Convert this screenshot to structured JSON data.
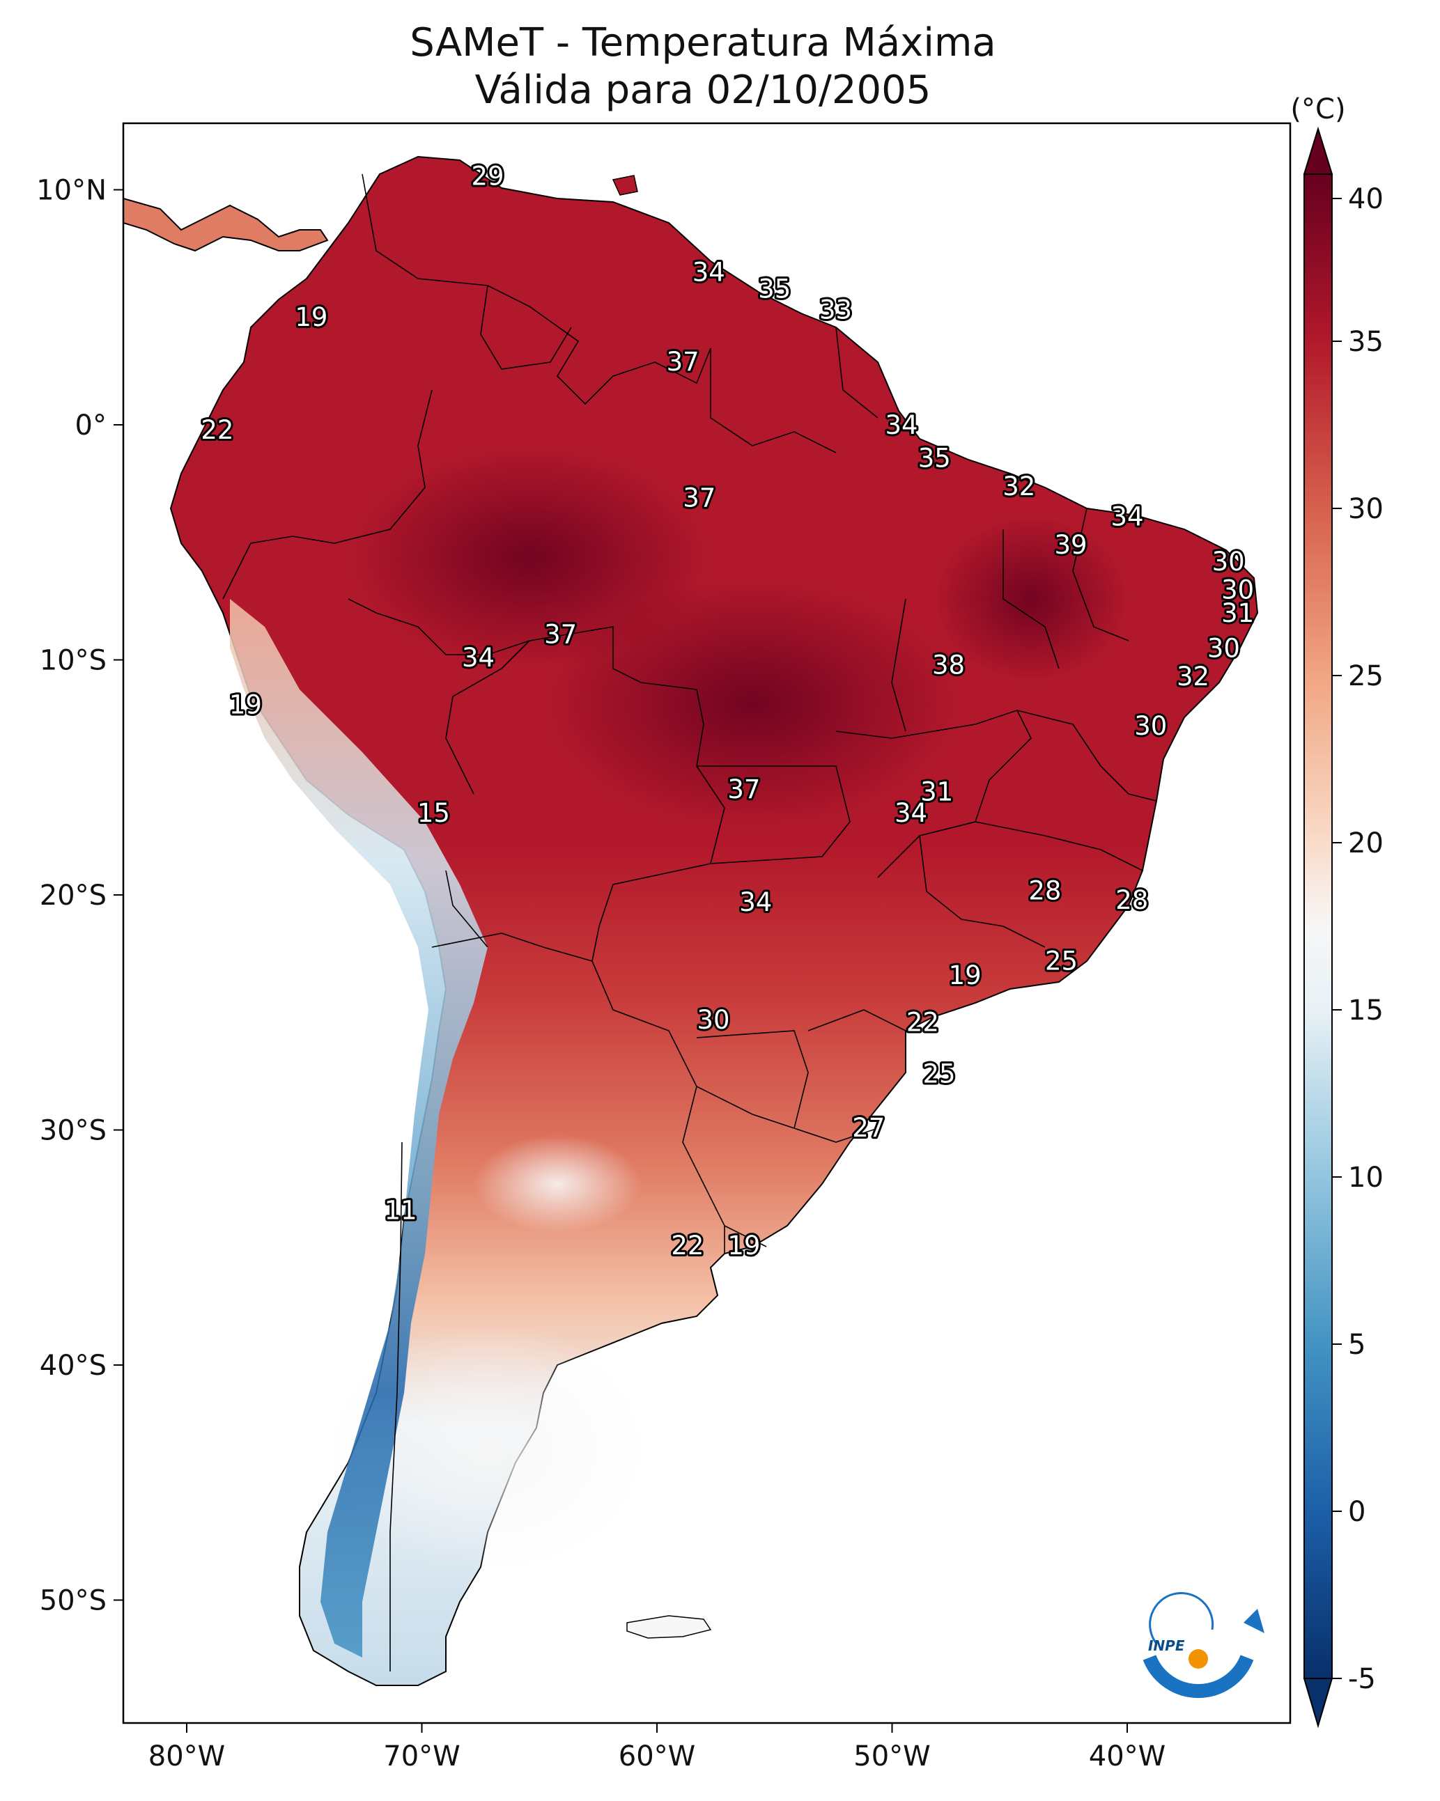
{
  "title_line1": "SAMeT - Temperatura Máxima",
  "title_line2": "Válida para 02/10/2005",
  "units_label": "(°C)",
  "x_ticks": [
    {
      "lon": -80,
      "label": "80°W"
    },
    {
      "lon": -70,
      "label": "70°W"
    },
    {
      "lon": -60,
      "label": "60°W"
    },
    {
      "lon": -50,
      "label": "50°W"
    },
    {
      "lon": -40,
      "label": "40°W"
    }
  ],
  "y_ticks": [
    {
      "lat": 10,
      "label": "10°N"
    },
    {
      "lat": 0,
      "label": "0°"
    },
    {
      "lat": -10,
      "label": "10°S"
    },
    {
      "lat": -20,
      "label": "20°S"
    },
    {
      "lat": -30,
      "label": "30°S"
    },
    {
      "lat": -40,
      "label": "40°S"
    },
    {
      "lat": -50,
      "label": "50°S"
    }
  ],
  "colorbar": {
    "min": -5,
    "max": 40,
    "ticks": [
      {
        "value": 40,
        "label": "40"
      },
      {
        "value": 35,
        "label": "35"
      },
      {
        "value": 30,
        "label": "30"
      },
      {
        "value": 25,
        "label": "25"
      },
      {
        "value": 20,
        "label": "20"
      },
      {
        "value": 15,
        "label": "15"
      },
      {
        "value": 10,
        "label": "10"
      },
      {
        "value": 5,
        "label": "5"
      },
      {
        "value": 0,
        "label": "0"
      },
      {
        "value": -5,
        "label": "-5"
      }
    ],
    "stops": [
      {
        "value": -5,
        "color": "#08306b"
      },
      {
        "value": 0,
        "color": "#1c5fa8"
      },
      {
        "value": 5,
        "color": "#4393c3"
      },
      {
        "value": 10,
        "color": "#92c5de"
      },
      {
        "value": 15,
        "color": "#e8f1f6"
      },
      {
        "value": 17.5,
        "color": "#f7f7f7"
      },
      {
        "value": 20,
        "color": "#f9dcc9"
      },
      {
        "value": 25,
        "color": "#f1a582"
      },
      {
        "value": 30,
        "color": "#d6604d"
      },
      {
        "value": 35,
        "color": "#b2182b"
      },
      {
        "value": 40,
        "color": "#67001f"
      }
    ]
  },
  "station_labels": [
    {
      "lon": -67.2,
      "lat": 10.6,
      "text": "29"
    },
    {
      "lon": -57.8,
      "lat": 6.5,
      "text": "34"
    },
    {
      "lon": -55.0,
      "lat": 5.8,
      "text": "35"
    },
    {
      "lon": -52.4,
      "lat": 4.9,
      "text": "33"
    },
    {
      "lon": -74.7,
      "lat": 4.6,
      "text": "19"
    },
    {
      "lon": -58.9,
      "lat": 2.7,
      "text": "37"
    },
    {
      "lon": -49.6,
      "lat": 0.0,
      "text": "34"
    },
    {
      "lon": -78.7,
      "lat": -0.2,
      "text": "22"
    },
    {
      "lon": -48.2,
      "lat": -1.4,
      "text": "35"
    },
    {
      "lon": -44.6,
      "lat": -2.6,
      "text": "32"
    },
    {
      "lon": -58.2,
      "lat": -3.1,
      "text": "37"
    },
    {
      "lon": -40.0,
      "lat": -3.9,
      "text": "34"
    },
    {
      "lon": -42.4,
      "lat": -5.1,
      "text": "39"
    },
    {
      "lon": -35.7,
      "lat": -5.8,
      "text": "30"
    },
    {
      "lon": -35.3,
      "lat": -7.0,
      "text": "30"
    },
    {
      "lon": -35.3,
      "lat": -8.0,
      "text": "31"
    },
    {
      "lon": -64.1,
      "lat": -8.9,
      "text": "37"
    },
    {
      "lon": -35.9,
      "lat": -9.5,
      "text": "30"
    },
    {
      "lon": -67.6,
      "lat": -9.9,
      "text": "34"
    },
    {
      "lon": -47.6,
      "lat": -10.2,
      "text": "38"
    },
    {
      "lon": -37.2,
      "lat": -10.7,
      "text": "32"
    },
    {
      "lon": -77.5,
      "lat": -11.9,
      "text": "19"
    },
    {
      "lon": -39.0,
      "lat": -12.8,
      "text": "30"
    },
    {
      "lon": -56.3,
      "lat": -15.5,
      "text": "37"
    },
    {
      "lon": -48.1,
      "lat": -15.6,
      "text": "31"
    },
    {
      "lon": -49.2,
      "lat": -16.5,
      "text": "34"
    },
    {
      "lon": -69.5,
      "lat": -16.5,
      "text": "15"
    },
    {
      "lon": -43.5,
      "lat": -19.8,
      "text": "28"
    },
    {
      "lon": -39.8,
      "lat": -20.2,
      "text": "28"
    },
    {
      "lon": -55.8,
      "lat": -20.3,
      "text": "34"
    },
    {
      "lon": -42.8,
      "lat": -22.8,
      "text": "25"
    },
    {
      "lon": -46.9,
      "lat": -23.4,
      "text": "19"
    },
    {
      "lon": -57.6,
      "lat": -25.3,
      "text": "30"
    },
    {
      "lon": -48.7,
      "lat": -25.4,
      "text": "22"
    },
    {
      "lon": -48.0,
      "lat": -27.6,
      "text": "25"
    },
    {
      "lon": -51.0,
      "lat": -29.9,
      "text": "27"
    },
    {
      "lon": -70.9,
      "lat": -33.4,
      "text": "11"
    },
    {
      "lon": -58.7,
      "lat": -34.9,
      "text": "22"
    },
    {
      "lon": -56.3,
      "lat": -34.9,
      "text": "19"
    }
  ],
  "logo": {
    "text": "INPE",
    "icon": "inpe-logo-icon"
  }
}
